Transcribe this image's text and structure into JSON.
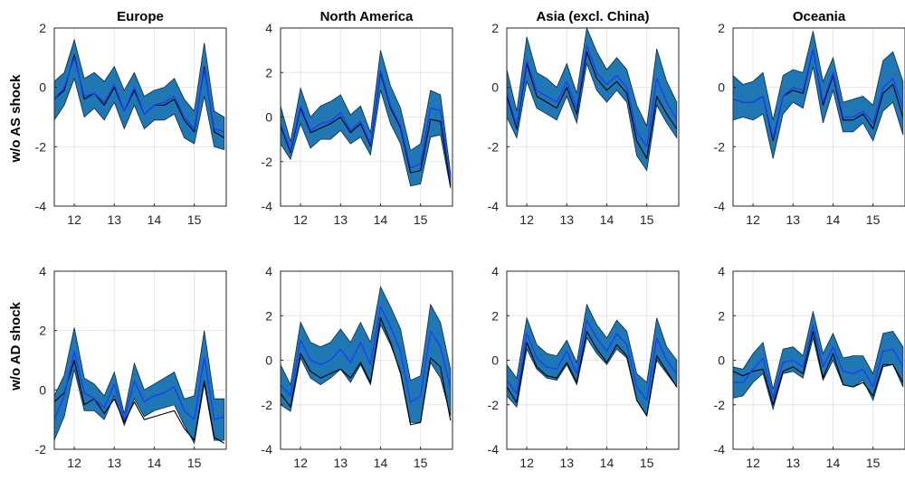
{
  "row_labels": [
    "w/o AS shock",
    "w/o AD shock"
  ],
  "chart_data": [
    {
      "type": "line",
      "title": "Europe",
      "row": 0,
      "col": 0,
      "x": [
        11.5,
        11.75,
        12,
        12.25,
        12.5,
        12.75,
        13,
        13.25,
        13.5,
        13.75,
        14,
        14.25,
        14.5,
        14.75,
        15,
        15.25,
        15.5,
        15.75
      ],
      "xticks": [
        12,
        13,
        14,
        15
      ],
      "xlim": [
        11.5,
        15.8
      ],
      "ylim": [
        -4,
        2
      ],
      "yticks": [
        -4,
        -2,
        0,
        2
      ],
      "series": [
        {
          "role": "band_upper",
          "values": [
            0.2,
            0.5,
            1.6,
            0.3,
            0.5,
            0.2,
            0.7,
            -0.1,
            0.5,
            -0.3,
            -0.1,
            0,
            0.3,
            -0.4,
            -0.8,
            1.5,
            -0.8,
            -1.0
          ]
        },
        {
          "role": "band_lower",
          "values": [
            -1.1,
            -0.6,
            0.3,
            -1.0,
            -0.7,
            -1.1,
            -0.5,
            -1.4,
            -0.6,
            -1.4,
            -1.1,
            -1.1,
            -0.9,
            -1.7,
            -1.9,
            -0.3,
            -2.0,
            -2.1
          ]
        },
        {
          "role": "median",
          "values": [
            -0.4,
            0,
            1.0,
            -0.3,
            -0.2,
            -0.5,
            0.1,
            -0.8,
            0,
            -0.9,
            -0.6,
            -0.5,
            -0.3,
            -1.0,
            -1.4,
            0.6,
            -1.4,
            -1.5
          ]
        },
        {
          "role": "actual",
          "values": [
            -0.4,
            -0.1,
            1.1,
            -0.4,
            -0.2,
            -0.6,
            0,
            -0.8,
            -0.1,
            -0.9,
            -0.6,
            -0.6,
            -0.4,
            -1.1,
            -1.5,
            0.7,
            -1.5,
            -1.7
          ]
        }
      ]
    },
    {
      "type": "line",
      "title": "North America",
      "row": 0,
      "col": 1,
      "x": [
        11.5,
        11.75,
        12,
        12.25,
        12.5,
        12.75,
        13,
        13.25,
        13.5,
        13.75,
        14,
        14.25,
        14.5,
        14.75,
        15,
        15.25,
        15.5,
        15.75
      ],
      "xticks": [
        12,
        13,
        14,
        15
      ],
      "xlim": [
        11.5,
        15.8
      ],
      "ylim": [
        -4,
        4
      ],
      "yticks": [
        -4,
        -2,
        0,
        2,
        4
      ],
      "series": [
        {
          "role": "band_upper",
          "values": [
            0.5,
            -1.1,
            1.3,
            0,
            0.5,
            0.7,
            1.0,
            0.1,
            0.5,
            -0.7,
            3.0,
            1.4,
            0.4,
            -1.5,
            -1.2,
            1.2,
            1.0,
            -2.5
          ]
        },
        {
          "role": "band_lower",
          "values": [
            -1.2,
            -1.9,
            -0.3,
            -1.4,
            -1.0,
            -1.0,
            -0.6,
            -1.2,
            -0.9,
            -1.7,
            1.2,
            -0.3,
            -1.2,
            -3.1,
            -3.0,
            -0.9,
            -0.8,
            -3.2
          ]
        },
        {
          "role": "median",
          "values": [
            -0.3,
            -1.5,
            0.5,
            -0.6,
            -0.3,
            -0.2,
            0.2,
            -0.6,
            -0.2,
            -1.2,
            2.1,
            0.5,
            -0.4,
            -2.3,
            -2.1,
            0.4,
            0.3,
            -2.9
          ]
        },
        {
          "role": "actual",
          "values": [
            -0.4,
            -1.6,
            0.4,
            -0.7,
            -0.5,
            -0.3,
            0,
            -0.7,
            -0.3,
            -1.3,
            2.0,
            0.4,
            -0.5,
            -2.5,
            -2.4,
            -0.1,
            -0.2,
            -3.1
          ]
        }
      ]
    },
    {
      "type": "line",
      "title": "Asia (excl. China)",
      "row": 0,
      "col": 2,
      "x": [
        11.5,
        11.75,
        12,
        12.25,
        12.5,
        12.75,
        13,
        13.25,
        13.5,
        13.75,
        14,
        14.25,
        14.5,
        14.75,
        15,
        15.25,
        15.5,
        15.75
      ],
      "xticks": [
        12,
        13,
        14,
        15
      ],
      "xlim": [
        11.5,
        15.8
      ],
      "ylim": [
        -4,
        2
      ],
      "yticks": [
        -4,
        -2,
        0,
        2
      ],
      "series": [
        {
          "role": "band_upper",
          "values": [
            0.6,
            -0.8,
            1.7,
            0.5,
            0.3,
            0,
            0.8,
            -0.2,
            2.0,
            1.2,
            0.6,
            1.0,
            0.6,
            -0.6,
            -1.3,
            1.3,
            0.2,
            -0.5
          ]
        },
        {
          "role": "band_lower",
          "values": [
            -1.0,
            -1.7,
            0.2,
            -0.7,
            -0.9,
            -1.1,
            -0.3,
            -1.2,
            0.8,
            -0.1,
            -0.5,
            -0.1,
            -0.5,
            -2.3,
            -2.8,
            -0.6,
            -1.2,
            -1.7
          ]
        },
        {
          "role": "median",
          "values": [
            -0.2,
            -1.3,
            0.9,
            -0.1,
            -0.3,
            -0.5,
            0.2,
            -0.7,
            1.4,
            0.5,
            0.1,
            0.4,
            0,
            -1.5,
            -2.0,
            0.3,
            -0.5,
            -1.1
          ]
        },
        {
          "role": "actual",
          "values": [
            -0.3,
            -1.4,
            0.8,
            -0.3,
            -0.5,
            -0.7,
            0,
            -0.9,
            1.2,
            0.3,
            -0.1,
            0.2,
            -0.2,
            -1.8,
            -2.4,
            -0.3,
            -0.9,
            -1.4
          ]
        }
      ]
    },
    {
      "type": "line",
      "title": "Oceania",
      "row": 0,
      "col": 3,
      "x": [
        11.5,
        11.75,
        12,
        12.25,
        12.5,
        12.75,
        13,
        13.25,
        13.5,
        13.75,
        14,
        14.25,
        14.5,
        14.75,
        15,
        15.25,
        15.5,
        15.75
      ],
      "xticks": [
        12,
        13,
        14,
        15
      ],
      "xlim": [
        11.5,
        15.8
      ],
      "ylim": [
        -4,
        2
      ],
      "yticks": [
        -4,
        -2,
        0,
        2
      ],
      "series": [
        {
          "role": "band_upper",
          "values": [
            0.4,
            0.1,
            0.2,
            0.5,
            -1.1,
            0.4,
            0.6,
            0.5,
            1.9,
            0.2,
            1.0,
            -0.5,
            -0.4,
            -0.3,
            -0.6,
            0.9,
            1.2,
            0.2
          ]
        },
        {
          "role": "band_lower",
          "values": [
            -1.1,
            -1.0,
            -1.1,
            -0.9,
            -2.4,
            -0.9,
            -0.5,
            -0.7,
            0.7,
            -1.2,
            -0.1,
            -1.5,
            -1.5,
            -1.2,
            -1.8,
            -0.8,
            -0.5,
            -1.6
          ]
        },
        {
          "role": "median",
          "values": [
            -0.4,
            -0.5,
            -0.5,
            -0.3,
            -1.7,
            -0.3,
            0,
            -0.1,
            1.3,
            -0.5,
            0.5,
            -1.0,
            -1.0,
            -0.8,
            -1.2,
            0,
            0.3,
            -0.7
          ]
        },
        {
          "role": "actual",
          "values": [
            -0.4,
            -0.5,
            -0.5,
            -0.3,
            -1.8,
            -0.3,
            -0.1,
            -0.2,
            1.3,
            -0.6,
            0.4,
            -1.1,
            -1.1,
            -0.9,
            -1.4,
            -0.2,
            0.1,
            -1.0
          ]
        }
      ]
    },
    {
      "type": "line",
      "title": "",
      "row": 1,
      "col": 0,
      "x": [
        11.5,
        11.75,
        12,
        12.25,
        12.5,
        12.75,
        13,
        13.25,
        13.5,
        13.75,
        14,
        14.25,
        14.5,
        14.75,
        15,
        15.25,
        15.5,
        15.75
      ],
      "xticks": [
        12,
        13,
        14,
        15
      ],
      "xlim": [
        11.5,
        15.8
      ],
      "ylim": [
        -2,
        4
      ],
      "yticks": [
        -2,
        0,
        2,
        4
      ],
      "series": [
        {
          "role": "band_upper",
          "values": [
            -0.2,
            0.5,
            2.1,
            0.4,
            0.2,
            -0.2,
            0.6,
            -0.8,
            0.9,
            0,
            0.2,
            0.4,
            0.6,
            -0.3,
            -0.2,
            2.0,
            -0.3,
            -0.3
          ]
        },
        {
          "role": "band_lower",
          "values": [
            -1.7,
            -0.9,
            0.7,
            -0.7,
            -0.7,
            -1.0,
            -0.2,
            -1.2,
            -0.3,
            -0.9,
            -0.7,
            -0.6,
            -0.5,
            -1.2,
            -1.8,
            0.2,
            -1.7,
            -1.7
          ]
        },
        {
          "role": "median",
          "values": [
            -1.0,
            -0.2,
            1.3,
            -0.1,
            -0.3,
            -0.6,
            0.2,
            -1.0,
            0.3,
            -0.4,
            -0.2,
            -0.1,
            0.1,
            -0.7,
            -1.0,
            1.1,
            -1.0,
            -0.9
          ]
        },
        {
          "role": "actual",
          "values": [
            -0.4,
            -0.1,
            1.0,
            -0.5,
            -0.3,
            -0.8,
            -0.3,
            -1.1,
            -0.4,
            -1.0,
            -0.9,
            -0.8,
            -0.7,
            -1.3,
            -1.7,
            0.3,
            -1.6,
            -1.8
          ]
        }
      ]
    },
    {
      "type": "line",
      "title": "",
      "row": 1,
      "col": 1,
      "x": [
        11.5,
        11.75,
        12,
        12.25,
        12.5,
        12.75,
        13,
        13.25,
        13.5,
        13.75,
        14,
        14.25,
        14.5,
        14.75,
        15,
        15.25,
        15.5,
        15.75
      ],
      "xticks": [
        12,
        13,
        14,
        15
      ],
      "xlim": [
        11.5,
        15.8
      ],
      "ylim": [
        -4,
        4
      ],
      "yticks": [
        -4,
        -2,
        0,
        2,
        4
      ],
      "series": [
        {
          "role": "band_upper",
          "values": [
            -0.2,
            -1.1,
            1.7,
            0.8,
            0.6,
            0.8,
            1.4,
            0.8,
            1.7,
            0.8,
            3.3,
            2.4,
            1.4,
            -0.9,
            -0.7,
            2.5,
            1.7,
            -0.4
          ]
        },
        {
          "role": "band_lower",
          "values": [
            -2.0,
            -2.3,
            0.1,
            -0.8,
            -1.1,
            -0.8,
            -0.4,
            -1.0,
            -0.2,
            -1.1,
            1.6,
            0.7,
            -0.5,
            -2.8,
            -2.8,
            -0.1,
            -0.8,
            -2.5
          ]
        },
        {
          "role": "median",
          "values": [
            -1.1,
            -1.6,
            0.9,
            0,
            -0.2,
            0,
            0.5,
            -0.1,
            0.8,
            -0.2,
            2.4,
            1.5,
            0.4,
            -1.9,
            -1.6,
            1.3,
            0.6,
            -1.3
          ]
        },
        {
          "role": "actual",
          "values": [
            -1.5,
            -2.1,
            0.3,
            -0.5,
            -0.8,
            -0.6,
            -0.4,
            -0.8,
            -0.1,
            -1.0,
            1.9,
            0.8,
            -0.6,
            -2.9,
            -2.8,
            0.1,
            -0.3,
            -2.7
          ]
        }
      ]
    },
    {
      "type": "line",
      "title": "",
      "row": 1,
      "col": 2,
      "x": [
        11.5,
        11.75,
        12,
        12.25,
        12.5,
        12.75,
        13,
        13.25,
        13.5,
        13.75,
        14,
        14.25,
        14.5,
        14.75,
        15,
        15.25,
        15.5,
        15.75
      ],
      "xticks": [
        12,
        13,
        14,
        15
      ],
      "xlim": [
        11.5,
        15.8
      ],
      "ylim": [
        -4,
        4
      ],
      "yticks": [
        -4,
        -2,
        0,
        2,
        4
      ],
      "series": [
        {
          "role": "band_upper",
          "values": [
            -0.2,
            -0.8,
            1.9,
            0.7,
            0.3,
            0.2,
            0.9,
            -0.1,
            2.5,
            1.6,
            1.0,
            1.8,
            1.3,
            -0.6,
            -1.0,
            1.9,
            0.6,
            0
          ]
        },
        {
          "role": "band_lower",
          "values": [
            -1.6,
            -2.1,
            0.5,
            -0.4,
            -0.8,
            -0.9,
            -0.2,
            -1.1,
            1.0,
            0.3,
            -0.2,
            0.5,
            0.1,
            -1.8,
            -2.5,
            0,
            -0.6,
            -1.2
          ]
        },
        {
          "role": "median",
          "values": [
            -0.9,
            -1.5,
            1.2,
            0.1,
            -0.3,
            -0.4,
            0.4,
            -0.6,
            1.8,
            1.0,
            0.4,
            1.2,
            0.7,
            -1.2,
            -1.8,
            1.0,
            0,
            -0.6
          ]
        },
        {
          "role": "actual",
          "values": [
            -1.2,
            -1.9,
            0.8,
            -0.3,
            -0.7,
            -0.8,
            -0.1,
            -1.0,
            1.3,
            0.5,
            -0.1,
            0.7,
            0.2,
            -1.8,
            -2.5,
            0.2,
            -0.5,
            -1.2
          ]
        }
      ]
    },
    {
      "type": "line",
      "title": "",
      "row": 1,
      "col": 3,
      "x": [
        11.5,
        11.75,
        12,
        12.25,
        12.5,
        12.75,
        13,
        13.25,
        13.5,
        13.75,
        14,
        14.25,
        14.5,
        14.75,
        15,
        15.25,
        15.5,
        15.75
      ],
      "xticks": [
        12,
        13,
        14,
        15
      ],
      "xlim": [
        11.5,
        15.8
      ],
      "ylim": [
        -4,
        4
      ],
      "yticks": [
        -4,
        -2,
        0,
        2,
        4
      ],
      "series": [
        {
          "role": "band_upper",
          "values": [
            -0.3,
            -0.4,
            0.3,
            0.8,
            -1.3,
            0.5,
            0.6,
            0.2,
            2.2,
            0.3,
            1.2,
            0.1,
            0.2,
            0.2,
            -0.6,
            1.2,
            1.3,
            0.6
          ]
        },
        {
          "role": "band_lower",
          "values": [
            -1.7,
            -1.6,
            -1.0,
            -0.6,
            -2.2,
            -0.6,
            -0.5,
            -0.8,
            1.0,
            -0.9,
            0,
            -1.1,
            -1.2,
            -0.9,
            -1.8,
            -0.3,
            -0.2,
            -1.2
          ]
        },
        {
          "role": "median",
          "values": [
            -1.0,
            -1.0,
            -0.4,
            0.1,
            -1.7,
            -0.1,
            0,
            -0.3,
            1.6,
            -0.3,
            0.6,
            -0.5,
            -0.6,
            -0.4,
            -1.2,
            0.4,
            0.5,
            -0.3
          ]
        },
        {
          "role": "actual",
          "values": [
            -0.5,
            -0.7,
            -0.5,
            -0.4,
            -2.0,
            -0.5,
            -0.3,
            -0.6,
            1.3,
            -0.8,
            0.3,
            -1.1,
            -1.2,
            -1.0,
            -1.6,
            -0.2,
            -0.2,
            -1.0
          ]
        }
      ]
    }
  ]
}
